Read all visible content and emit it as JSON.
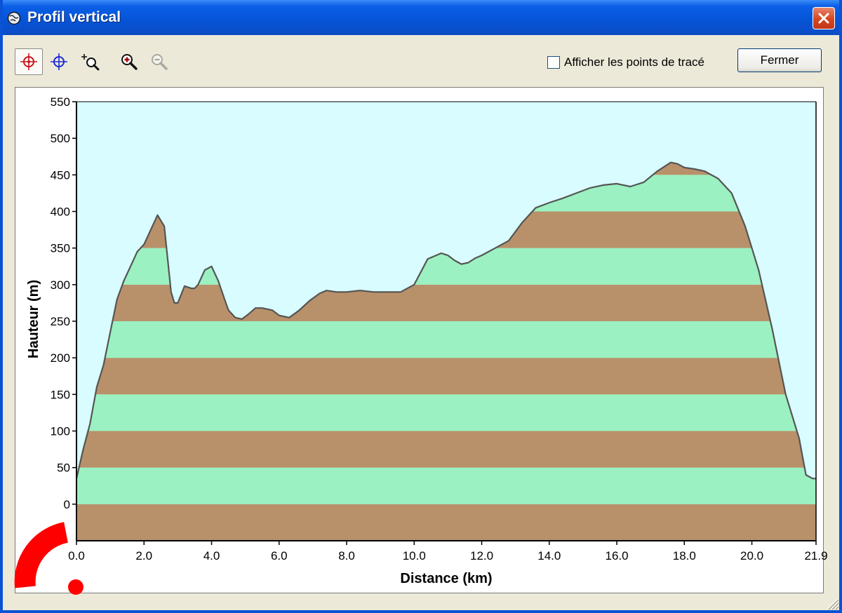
{
  "window": {
    "title": "Profil vertical"
  },
  "toolbar": {
    "tools": [
      "crosshair-red-icon",
      "crosshair-blue-icon",
      "zoom-area-icon",
      "zoom-in-icon",
      "zoom-out-icon"
    ],
    "checkbox_label": "Afficher les points de tracé",
    "checkbox_checked": false,
    "close_label": "Fermer"
  },
  "colors": {
    "sky": "#d8fcff",
    "band_brown": "#b8916a",
    "band_green": "#9bf1c1",
    "profile_line": "#555555"
  },
  "chart_data": {
    "type": "area",
    "title": "",
    "xlabel": "Distance   (km)",
    "ylabel": "Hauteur  (m)",
    "xlim": [
      0,
      21.9
    ],
    "ylim": [
      -50,
      550
    ],
    "xticks": [
      "0.0",
      "2.0",
      "4.0",
      "6.0",
      "8.0",
      "10.0",
      "12.0",
      "14.0",
      "16.0",
      "18.0",
      "20.0",
      "21.9"
    ],
    "yticks": [
      "550",
      "500",
      "450",
      "400",
      "350",
      "300",
      "250",
      "200",
      "150",
      "100",
      "50",
      "0"
    ],
    "x": [
      0,
      0.2,
      0.4,
      0.6,
      0.8,
      1.0,
      1.2,
      1.4,
      1.6,
      1.8,
      2.0,
      2.2,
      2.4,
      2.6,
      2.8,
      2.9,
      3.0,
      3.2,
      3.4,
      3.5,
      3.6,
      3.8,
      4.0,
      4.2,
      4.4,
      4.5,
      4.7,
      4.9,
      5.1,
      5.3,
      5.5,
      5.8,
      6.0,
      6.3,
      6.6,
      6.9,
      7.2,
      7.4,
      7.7,
      8.0,
      8.4,
      8.8,
      9.2,
      9.6,
      10.0,
      10.4,
      10.8,
      11.0,
      11.2,
      11.4,
      11.6,
      11.8,
      12.0,
      12.4,
      12.8,
      13.2,
      13.6,
      14.0,
      14.4,
      14.8,
      15.2,
      15.6,
      16.0,
      16.4,
      16.8,
      17.2,
      17.6,
      17.8,
      18.0,
      18.3,
      18.6,
      19.0,
      19.4,
      19.8,
      20.2,
      20.6,
      21.0,
      21.4,
      21.6,
      21.8,
      21.9
    ],
    "y": [
      35,
      75,
      110,
      160,
      190,
      235,
      280,
      305,
      325,
      345,
      355,
      375,
      395,
      380,
      290,
      275,
      275,
      298,
      295,
      295,
      300,
      320,
      325,
      305,
      278,
      265,
      255,
      253,
      260,
      268,
      268,
      265,
      258,
      255,
      265,
      278,
      288,
      292,
      290,
      290,
      292,
      290,
      290,
      290,
      300,
      335,
      343,
      340,
      333,
      328,
      330,
      336,
      340,
      350,
      360,
      385,
      405,
      412,
      418,
      425,
      432,
      436,
      438,
      434,
      440,
      455,
      467,
      465,
      460,
      458,
      455,
      445,
      425,
      380,
      320,
      240,
      150,
      90,
      40,
      35,
      35
    ],
    "bands": {
      "step": 50,
      "colors": [
        "brown",
        "green"
      ]
    },
    "grid": false,
    "legend": "none"
  }
}
